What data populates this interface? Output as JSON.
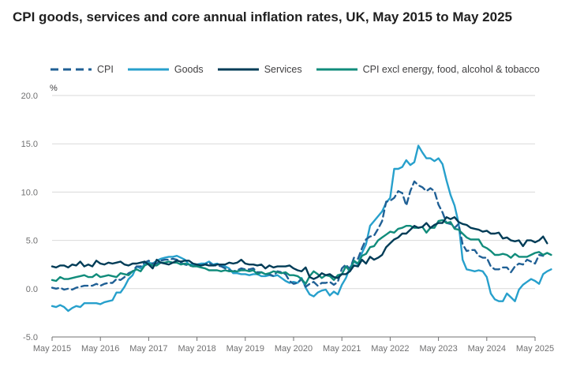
{
  "chart_data": {
    "type": "line",
    "title": "CPI goods, services and core annual inflation rates, UK, May 2015 to May 2025",
    "ylabel": "%",
    "ylim": [
      -5,
      20
    ],
    "yticks": [
      20,
      15,
      10,
      5,
      0,
      -5
    ],
    "ytick_labels": [
      "20.0",
      "15.0",
      "10.0",
      "5.0",
      "0.0",
      "-5.0"
    ],
    "x_tick_labels": [
      "May 2015",
      "May 2016",
      "May 2017",
      "May 2018",
      "May 2019",
      "May 2020",
      "May 2021",
      "May 2022",
      "May 2023",
      "May 2024",
      "May 2025"
    ],
    "x_tick_months": [
      0,
      12,
      24,
      36,
      48,
      60,
      72,
      84,
      96,
      108,
      120
    ],
    "series": [
      {
        "name": "CPI",
        "color": "#206095",
        "dash": true,
        "values": [
          0.1,
          0.0,
          0.1,
          -0.1,
          0.0,
          -0.1,
          0.1,
          0.2,
          0.3,
          0.3,
          0.3,
          0.5,
          0.3,
          0.5,
          0.6,
          0.6,
          1.0,
          0.9,
          1.2,
          1.6,
          1.8,
          2.3,
          2.3,
          2.7,
          2.9,
          2.6,
          2.6,
          2.9,
          3.0,
          3.0,
          3.1,
          3.0,
          2.7,
          2.5,
          2.4,
          2.3,
          2.4,
          2.4,
          2.5,
          2.7,
          2.4,
          2.4,
          2.3,
          2.1,
          1.9,
          1.8,
          1.9,
          2.1,
          2.0,
          2.0,
          2.1,
          1.7,
          1.7,
          1.5,
          1.5,
          1.3,
          1.8,
          1.7,
          1.5,
          0.8,
          0.5,
          0.6,
          1.0,
          0.2,
          0.5,
          0.7,
          0.3,
          0.6,
          0.6,
          0.7,
          0.4,
          0.7,
          2.1,
          2.5,
          2.0,
          3.2,
          3.1,
          4.2,
          5.1,
          5.4,
          5.5,
          6.2,
          7.0,
          9.0,
          9.1,
          9.4,
          10.1,
          9.9,
          8.6,
          10.1,
          11.1,
          10.7,
          10.5,
          10.1,
          10.4,
          10.1,
          8.7,
          7.9,
          6.8,
          6.7,
          6.3,
          6.7,
          4.6,
          3.9,
          4.0,
          4.0,
          3.4,
          3.2,
          3.2,
          2.3,
          2.0,
          2.0,
          2.2,
          2.2,
          1.7,
          2.3,
          2.6,
          2.5,
          3.0,
          2.8,
          2.6,
          3.5,
          3.4
        ]
      },
      {
        "name": "Goods",
        "color": "#27a0cc",
        "dash": false,
        "values": [
          -1.8,
          -1.9,
          -1.7,
          -1.9,
          -2.3,
          -2.0,
          -1.8,
          -1.9,
          -1.5,
          -1.5,
          -1.5,
          -1.5,
          -1.6,
          -1.4,
          -1.3,
          -1.2,
          -0.4,
          -0.4,
          0.2,
          1.0,
          1.4,
          2.3,
          2.1,
          2.5,
          2.7,
          2.6,
          2.9,
          3.1,
          3.2,
          3.3,
          3.3,
          3.4,
          3.2,
          3.0,
          2.5,
          2.5,
          2.5,
          2.6,
          2.6,
          2.8,
          2.5,
          2.6,
          2.4,
          2.3,
          2.1,
          1.6,
          1.6,
          1.5,
          1.5,
          1.4,
          1.5,
          1.5,
          1.3,
          1.3,
          1.4,
          1.3,
          1.4,
          1.1,
          0.8,
          0.6,
          0.7,
          0.6,
          1.1,
          0.1,
          -0.6,
          -0.8,
          -0.4,
          -0.2,
          -0.1,
          -0.7,
          -0.3,
          -0.6,
          0.4,
          1.1,
          2.2,
          2.8,
          2.5,
          3.7,
          4.6,
          6.5,
          7.0,
          7.5,
          8.0,
          8.9,
          9.4,
          12.4,
          12.4,
          12.6,
          13.3,
          12.8,
          13.1,
          14.8,
          14.1,
          13.5,
          13.5,
          13.2,
          13.5,
          12.9,
          11.2,
          9.7,
          8.6,
          6.8,
          3.0,
          2.0,
          1.9,
          1.8,
          1.9,
          1.8,
          1.2,
          -0.5,
          -1.1,
          -1.3,
          -1.3,
          -0.5,
          -0.9,
          -1.3,
          -0.1,
          0.4,
          0.7,
          1.0,
          0.8,
          0.5,
          1.5,
          1.8,
          2.0
        ]
      },
      {
        "name": "Services",
        "color": "#003c57",
        "dash": false,
        "values": [
          2.3,
          2.2,
          2.4,
          2.4,
          2.2,
          2.5,
          2.4,
          2.8,
          2.3,
          2.5,
          2.3,
          2.9,
          2.6,
          2.5,
          2.7,
          2.6,
          2.7,
          2.8,
          2.5,
          2.4,
          2.6,
          2.6,
          2.7,
          2.8,
          2.5,
          2.1,
          3.0,
          2.7,
          2.6,
          2.5,
          2.7,
          2.9,
          2.8,
          2.9,
          2.9,
          2.6,
          2.5,
          2.4,
          2.5,
          2.4,
          2.4,
          2.5,
          2.5,
          2.5,
          2.7,
          2.6,
          2.7,
          3.0,
          2.6,
          2.5,
          2.5,
          2.4,
          2.5,
          2.1,
          2.4,
          2.2,
          2.3,
          2.3,
          2.3,
          2.4,
          2.1,
          1.9,
          1.8,
          2.2,
          1.2,
          1.0,
          1.2,
          1.6,
          1.4,
          1.5,
          1.2,
          1.1,
          1.5,
          1.5,
          1.8,
          2.4,
          2.3,
          3.0,
          2.6,
          3.3,
          3.0,
          3.2,
          3.5,
          4.3,
          4.7,
          5.1,
          5.3,
          5.7,
          5.7,
          6.1,
          6.5,
          6.3,
          6.4,
          6.8,
          6.3,
          6.6,
          6.8,
          6.8,
          7.4,
          7.2,
          7.4,
          6.9,
          6.7,
          6.6,
          6.3,
          6.2,
          6.1,
          5.9,
          6.0,
          5.7,
          5.7,
          5.8,
          5.2,
          5.3,
          5.0,
          4.9,
          5.0,
          4.4,
          5.0,
          5.0,
          4.8,
          5.0,
          5.4,
          4.7
        ]
      },
      {
        "name": "CPI excl energy, food, alcohol & tobacco",
        "color": "#118c7b",
        "dash": false,
        "values": [
          0.9,
          0.8,
          1.2,
          1.0,
          1.0,
          1.1,
          1.2,
          1.3,
          1.4,
          1.2,
          1.2,
          1.5,
          1.2,
          1.3,
          1.4,
          1.3,
          1.2,
          1.6,
          1.5,
          1.4,
          1.8,
          2.0,
          1.8,
          2.4,
          2.6,
          2.4,
          2.4,
          2.7,
          2.7,
          2.8,
          2.7,
          2.7,
          2.5,
          2.6,
          2.5,
          2.3,
          2.3,
          2.2,
          2.1,
          1.9,
          1.9,
          1.9,
          1.8,
          1.9,
          1.8,
          1.8,
          1.8,
          1.9,
          1.9,
          1.8,
          1.9,
          1.5,
          1.7,
          1.5,
          1.6,
          1.8,
          1.7,
          1.6,
          1.7,
          1.4,
          1.4,
          1.3,
          1.0,
          0.5,
          1.3,
          1.8,
          1.5,
          1.1,
          1.4,
          1.3,
          0.9,
          1.4,
          1.5,
          2.3,
          1.8,
          2.9,
          2.6,
          3.4,
          3.6,
          4.3,
          4.4,
          5.0,
          5.3,
          5.6,
          5.9,
          5.8,
          6.2,
          6.3,
          6.5,
          6.5,
          6.3,
          6.3,
          6.4,
          5.8,
          6.3,
          6.3,
          7.0,
          7.1,
          6.8,
          6.9,
          6.2,
          6.1,
          5.7,
          5.3,
          5.1,
          5.1,
          5.1,
          4.4,
          4.2,
          3.9,
          3.5,
          3.5,
          3.6,
          3.5,
          3.2,
          3.6,
          3.3,
          3.3,
          3.3,
          3.5,
          3.7,
          3.8,
          3.5,
          3.7,
          3.5
        ]
      }
    ]
  }
}
